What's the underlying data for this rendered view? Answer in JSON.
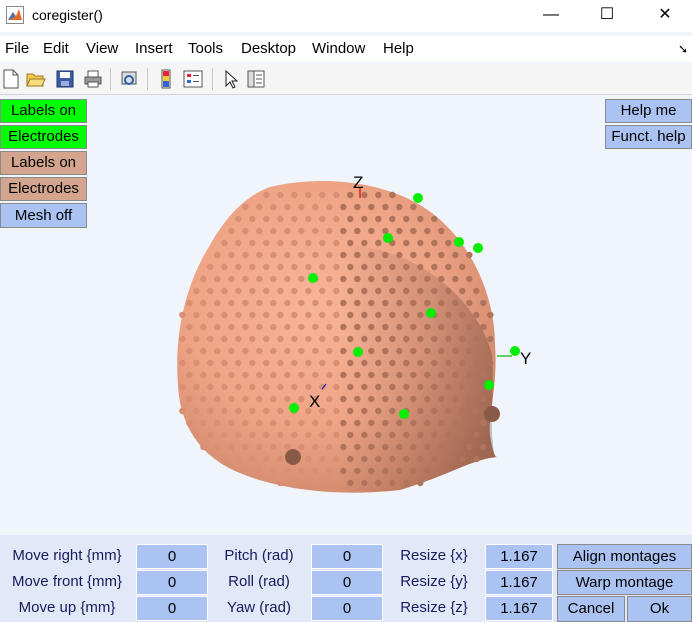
{
  "window": {
    "title": "coregister()",
    "minimize": "—",
    "maximize": "☐",
    "close": "✕"
  },
  "menu": [
    "File",
    "Edit",
    "View",
    "Insert",
    "Tools",
    "Desktop",
    "Window",
    "Help"
  ],
  "toolbar_icons": [
    "new-file-icon",
    "open-folder-icon",
    "save-icon",
    "print-icon",
    "print-preview-icon",
    "colorbar-icon",
    "legend-icon",
    "pointer-icon",
    "property-inspector-icon"
  ],
  "left_buttons": {
    "labels_on_green": "Labels on",
    "electrodes_green": "Electrodes",
    "labels_on_tan": "Labels on",
    "electrodes_tan": "Electrodes",
    "mesh_off": "Mesh off"
  },
  "right_buttons": {
    "help_me": "Help me",
    "funct_help": "Funct. help"
  },
  "axes": {
    "z": "Z",
    "y": "Y",
    "x": "X"
  },
  "colors": {
    "head": "#f4a98c",
    "electrode_green": "#00ee00",
    "fiducial": "#8a5a48",
    "button_green": "#00ff00",
    "button_tan": "#d4a58e",
    "button_blue": "#aac3f2"
  },
  "controls": {
    "move_right_label": "Move right {mm}",
    "move_right_value": "0",
    "move_front_label": "Move front {mm}",
    "move_front_value": "0",
    "move_up_label": "Move up {mm}",
    "move_up_value": "0",
    "pitch_label": "Pitch (rad)",
    "pitch_value": "0",
    "roll_label": "Roll (rad)",
    "roll_value": "0",
    "yaw_label": "Yaw (rad)",
    "yaw_value": "0",
    "resize_x_label": "Resize {x}",
    "resize_x_value": "1.167",
    "resize_y_label": "Resize {y}",
    "resize_y_value": "1.167",
    "resize_z_label": "Resize {z}",
    "resize_z_value": "1.167"
  },
  "actions": {
    "align": "Align montages",
    "warp": "Warp montage",
    "cancel": "Cancel",
    "ok": "Ok"
  }
}
